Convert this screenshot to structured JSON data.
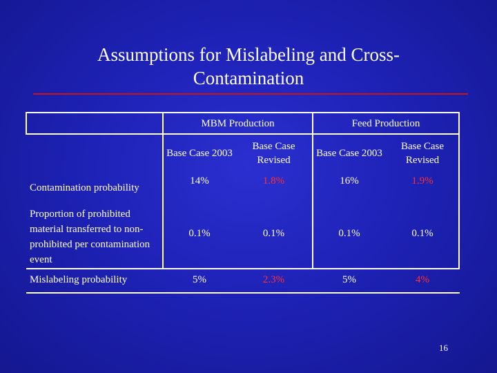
{
  "slide": {
    "title_line1": "Assumptions for Mislabeling and Cross-",
    "title_line2": "Contamination",
    "page_number": "16"
  },
  "table": {
    "groups": {
      "mbm": "MBM Production",
      "feed": "Feed Production"
    },
    "subheaders": [
      "Base Case 2003",
      "Base Case Revised",
      "Base Case 2003",
      "Base Case Revised"
    ],
    "rows": [
      {
        "label": "Contamination probability",
        "values": [
          "14%",
          "1.8%",
          "16%",
          "1.9%"
        ]
      },
      {
        "label": "Proportion of prohibited material transferred to non-prohibited per contamination event",
        "values": [
          "0.1%",
          "0.1%",
          "0.1%",
          "0.1%"
        ]
      },
      {
        "label": "Mislabeling probability",
        "values": [
          "5%",
          "2.3%",
          "5%",
          "4%"
        ]
      }
    ]
  },
  "colors": {
    "background": "#1e22b6",
    "text": "#ffffff",
    "revised_values": "#ff3030",
    "title_rule": "#c81414"
  }
}
